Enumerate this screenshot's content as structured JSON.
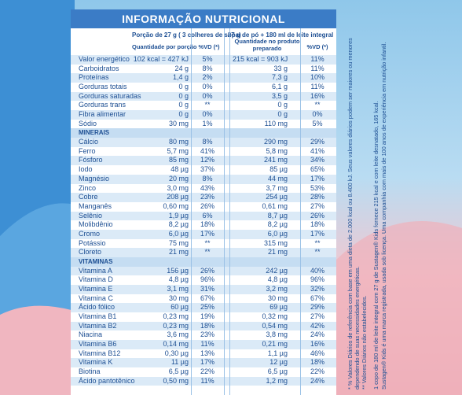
{
  "header": {
    "title": "INFORMAÇÃO NUTRICIONAL",
    "portion": "Porção de 27 g ( 3 colheres de sopa)",
    "prepared": "27 g de pó + 180 ml de leite integral",
    "col_qty1": "Quantidade por porção",
    "col_vd1": "%VD (*)",
    "col_qty2": "Quantidade no produto preparado",
    "col_vd2": "%VD (*)"
  },
  "table": {
    "groups": [
      {
        "rows": [
          [
            "Valor energético",
            "102 kcal = 427 kJ",
            "5%",
            "215 kcal = 903 kJ",
            "11%"
          ],
          [
            "Carboidratos",
            "24 g",
            "8%",
            "33 g",
            "11%"
          ],
          [
            "Proteínas",
            "1,4 g",
            "2%",
            "7,3 g",
            "10%"
          ],
          [
            "Gorduras totais",
            "0 g",
            "0%",
            "6,1 g",
            "11%"
          ],
          [
            "Gorduras saturadas",
            "0 g",
            "0%",
            "3,5 g",
            "16%"
          ],
          [
            "Gorduras trans",
            "0 g",
            "**",
            "0 g",
            "**"
          ],
          [
            "Fibra alimentar",
            "0 g",
            "0%",
            "0 g",
            "0%"
          ],
          [
            "Sódio",
            "30 mg",
            "1%",
            "110 mg",
            "5%"
          ]
        ]
      },
      {
        "title": "MINERAIS",
        "rows": [
          [
            "Cálcio",
            "80 mg",
            "8%",
            "290 mg",
            "29%"
          ],
          [
            "Ferro",
            "5,7 mg",
            "41%",
            "5,8 mg",
            "41%"
          ],
          [
            "Fósforo",
            "85 mg",
            "12%",
            "241 mg",
            "34%"
          ],
          [
            "Iodo",
            "48 µg",
            "37%",
            "85 µg",
            "65%"
          ],
          [
            "Magnésio",
            "20 mg",
            "8%",
            "44 mg",
            "17%"
          ],
          [
            "Zinco",
            "3,0 mg",
            "43%",
            "3,7 mg",
            "53%"
          ],
          [
            "Cobre",
            "208 µg",
            "23%",
            "254 µg",
            "28%"
          ],
          [
            "Manganês",
            "0,60 mg",
            "26%",
            "0,61 mg",
            "27%"
          ],
          [
            "Selênio",
            "1,9 µg",
            "6%",
            "8,7 µg",
            "26%"
          ],
          [
            "Molibdênio",
            "8,2 µg",
            "18%",
            "8,2 µg",
            "18%"
          ],
          [
            "Cromo",
            "6,0 µg",
            "17%",
            "6,0 µg",
            "17%"
          ],
          [
            "Potássio",
            "75 mg",
            "**",
            "315 mg",
            "**"
          ],
          [
            "Cloreto",
            "21 mg",
            "**",
            "21 mg",
            "**"
          ]
        ]
      },
      {
        "title": "VITAMINAS",
        "rows": [
          [
            "Vitamina A",
            "156 µg",
            "26%",
            "242 µg",
            "40%"
          ],
          [
            "Vitamina D",
            "4,8 µg",
            "96%",
            "4,8 µg",
            "96%"
          ],
          [
            "Vitamina E",
            "3,1 mg",
            "31%",
            "3,2 mg",
            "32%"
          ],
          [
            "Vitamina C",
            "30 mg",
            "67%",
            "30 mg",
            "67%"
          ],
          [
            "Ácido fólico",
            "60 µg",
            "25%",
            "69 µg",
            "29%"
          ],
          [
            "Vitamina B1",
            "0,23 mg",
            "19%",
            "0,32 mg",
            "27%"
          ],
          [
            "Vitamina B2",
            "0,23 mg",
            "18%",
            "0,54 mg",
            "42%"
          ],
          [
            "Niacina",
            "3,6 mg",
            "23%",
            "3,8 mg",
            "24%"
          ],
          [
            "Vitamina B6",
            "0,14 mg",
            "11%",
            "0,21 mg",
            "16%"
          ],
          [
            "Vitamina B12",
            "0,30 µg",
            "13%",
            "1,1 µg",
            "46%"
          ],
          [
            "Vitamina K",
            "11 µg",
            "17%",
            "12 µg",
            "18%"
          ],
          [
            "Biotina",
            "6,5 µg",
            "22%",
            "6,5 µg",
            "22%"
          ],
          [
            "Ácido pantotênico",
            "0,50 mg",
            "11%",
            "1,2 mg",
            "24%"
          ]
        ]
      }
    ]
  },
  "footnotes": [
    "* % Valores Diários de referência com base em uma dieta de 2.000 kcal ou 8.400 kJ. Seus valores diários podem ser maiores ou menores",
    "dependendo de suas necessidades energéticas.",
    "** Valores Diários não estabelecidos.",
    "1 copo de 180 ml de leite integral com 27 g de Sustagen® Kids fornece 215 kcal e com leite desnatado, 165 kcal.",
    "Sustagen® Kids é uma marca registrada, usada sob licença. Uma companhia com mais de 100 anos de experiência em nutrição infantil."
  ]
}
